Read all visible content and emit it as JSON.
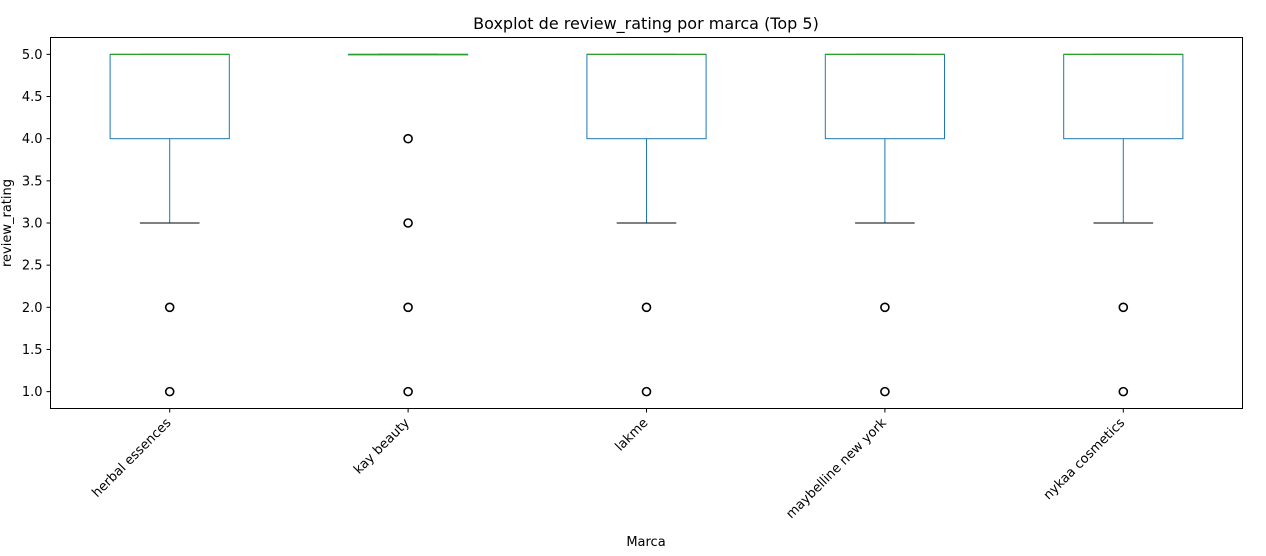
{
  "chart_data": {
    "type": "boxplot",
    "title": "Boxplot de review_rating por marca (Top 5)",
    "xlabel": "Marca",
    "ylabel": "review_rating",
    "ylim": [
      0.8,
      5.2
    ],
    "yticks": [
      1.0,
      1.5,
      2.0,
      2.5,
      3.0,
      3.5,
      4.0,
      4.5,
      5.0
    ],
    "grid": false,
    "legend": "none",
    "colors": {
      "box": "#1f77b4",
      "median": "#2ca02c",
      "cap": "#000000",
      "flier": "#000000"
    },
    "categories": [
      "herbal essences",
      "kay beauty",
      "lakme",
      "maybelline new york",
      "nykaa cosmetics"
    ],
    "boxes": [
      {
        "category": "herbal essences",
        "q1": 4.0,
        "median": 5.0,
        "q3": 5.0,
        "whisker_low": 3.0,
        "whisker_high": 5.0,
        "outliers": [
          2.0,
          1.0
        ]
      },
      {
        "category": "kay beauty",
        "q1": 5.0,
        "median": 5.0,
        "q3": 5.0,
        "whisker_low": 5.0,
        "whisker_high": 5.0,
        "outliers": [
          4.0,
          3.0,
          2.0,
          1.0
        ]
      },
      {
        "category": "lakme",
        "q1": 4.0,
        "median": 5.0,
        "q3": 5.0,
        "whisker_low": 3.0,
        "whisker_high": 5.0,
        "outliers": [
          2.0,
          1.0
        ]
      },
      {
        "category": "maybelline new york",
        "q1": 4.0,
        "median": 5.0,
        "q3": 5.0,
        "whisker_low": 3.0,
        "whisker_high": 5.0,
        "outliers": [
          2.0,
          1.0
        ]
      },
      {
        "category": "nykaa cosmetics",
        "q1": 4.0,
        "median": 5.0,
        "q3": 5.0,
        "whisker_low": 3.0,
        "whisker_high": 5.0,
        "outliers": [
          2.0,
          1.0
        ]
      }
    ]
  }
}
